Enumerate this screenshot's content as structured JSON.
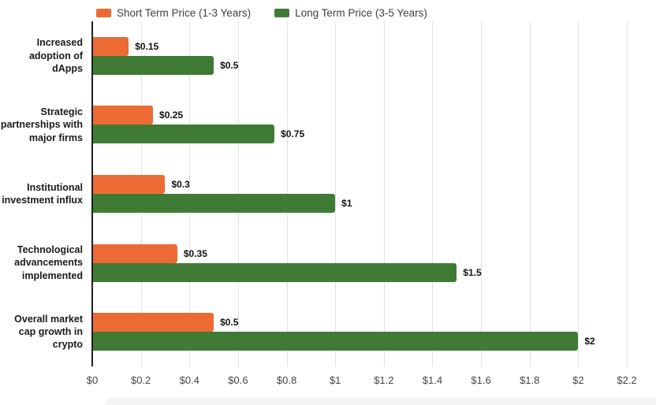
{
  "chart_data": {
    "type": "bar",
    "orientation": "horizontal",
    "title": "",
    "xlabel": "",
    "ylabel": "",
    "categories": [
      "Increased adoption of dApps",
      "Strategic partnerships with major firms",
      "Institutional investment influx",
      "Technological advancements implemented",
      "Overall market cap growth in crypto"
    ],
    "series": [
      {
        "name": "Short Term Price (1-3 Years)",
        "color": "#EC6B35",
        "values": [
          0.15,
          0.25,
          0.3,
          0.35,
          0.5
        ],
        "value_labels": [
          "$0.15",
          "$0.25",
          "$0.3",
          "$0.35",
          "$0.5"
        ]
      },
      {
        "name": "Long Term Price (3-5 Years)",
        "color": "#3F7B35",
        "values": [
          0.5,
          0.75,
          1,
          1.5,
          2
        ],
        "value_labels": [
          "$0.5",
          "$0.75",
          "$1",
          "$1.5",
          "$2"
        ]
      }
    ],
    "xlim": [
      0,
      2.2
    ],
    "x_ticks": [
      "$0",
      "$0.2",
      "$0.4",
      "$0.6",
      "$0.8",
      "$1",
      "$1.2",
      "$1.4",
      "$1.6",
      "$1.8",
      "$2",
      "$2.2"
    ],
    "x_tick_values": [
      0,
      0.2,
      0.4,
      0.6,
      0.8,
      1,
      1.2,
      1.4,
      1.6,
      1.8,
      2,
      2.2
    ],
    "grid": true,
    "legend_position": "top-left"
  },
  "colors": {
    "axis_line": "#1f1f1f",
    "gridline": "#e2e2e2",
    "tick_text": "#454545",
    "label_text": "#1b1b1b",
    "legend_text": "#3c4043",
    "background": "#ffffff"
  }
}
